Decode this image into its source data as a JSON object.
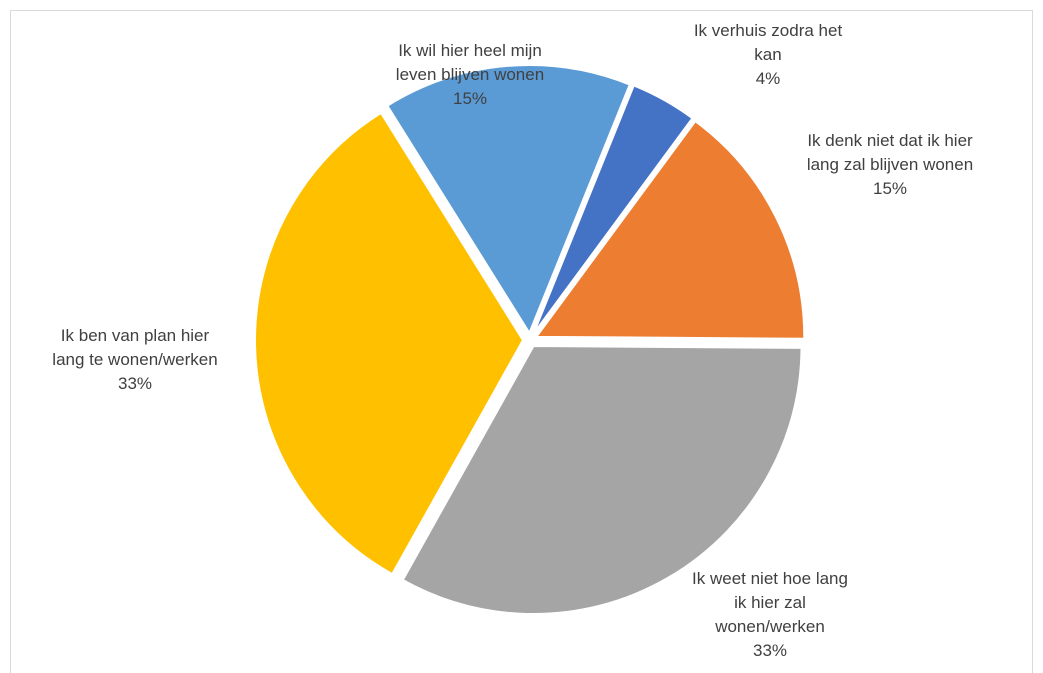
{
  "chart_data": {
    "type": "pie",
    "categories": [
      "Ik verhuis zodra het kan",
      "Ik denk niet dat ik hier lang zal blijven wonen",
      "Ik weet niet hoe lang ik hier zal wonen/werken",
      "Ik ben van plan hier lang te wonen/werken",
      "Ik wil hier heel mijn leven blijven wonen"
    ],
    "values": [
      4,
      15,
      33,
      33,
      15
    ],
    "value_labels": [
      "4%",
      "15%",
      "33%",
      "33%",
      "15%"
    ],
    "colors": [
      "#4472c4",
      "#ed7d31",
      "#a5a5a5",
      "#ffc000",
      "#5b9bd5"
    ],
    "start_angle": 22
  }
}
